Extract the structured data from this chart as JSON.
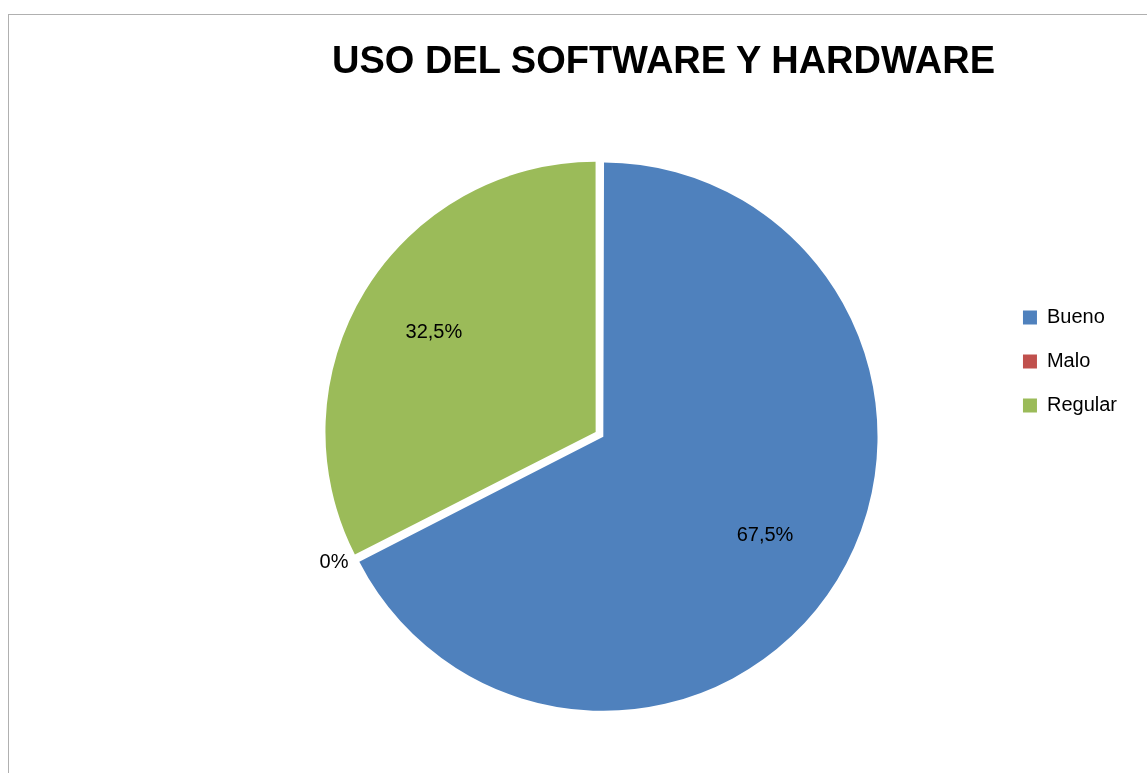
{
  "chart_data": {
    "type": "pie",
    "title": "USO DEL SOFTWARE Y HARDWARE",
    "categories": [
      "Bueno",
      "Malo",
      "Regular"
    ],
    "values": [
      67.5,
      0,
      32.5
    ],
    "colors": [
      "#4f81bd",
      "#c0504d",
      "#9bbb59"
    ],
    "value_labels": [
      "67,5%",
      "0%",
      "32,5%"
    ],
    "legend": "right"
  }
}
